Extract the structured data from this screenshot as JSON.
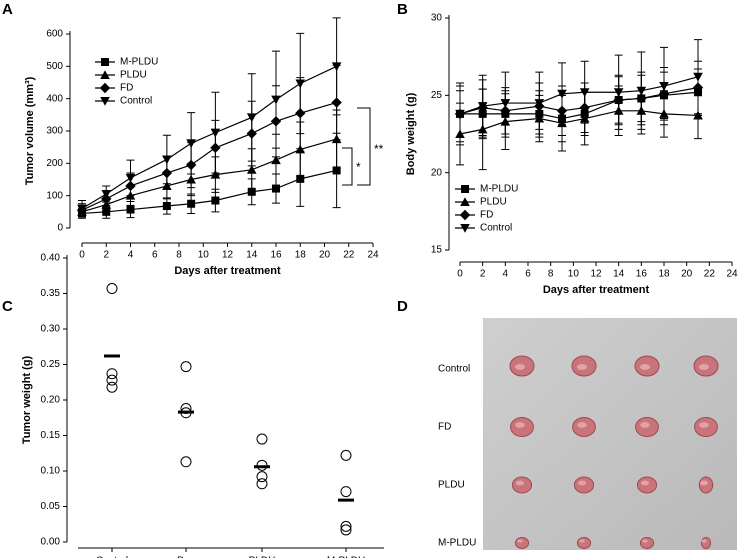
{
  "chart_data": [
    {
      "type": "line",
      "panel": "A",
      "x_label": "Days after treatment",
      "y_label": "Tumor volume (mm³)",
      "x": [
        0,
        2,
        4,
        7,
        9,
        11,
        14,
        16,
        18,
        21
      ],
      "xlim": [
        0,
        24
      ],
      "xticks": [
        0,
        2,
        4,
        6,
        8,
        10,
        12,
        14,
        16,
        18,
        20,
        22,
        24
      ],
      "ylim": [
        0,
        600
      ],
      "yticks": [
        0,
        100,
        200,
        300,
        400,
        500,
        600
      ],
      "series": [
        {
          "name": "M-PLDU",
          "color": "#000000",
          "marker": "square",
          "values": [
            45,
            50,
            57,
            68,
            75,
            85,
            112,
            122,
            152,
            178
          ],
          "errors": [
            15,
            20,
            25,
            25,
            30,
            35,
            40,
            45,
            85,
            115
          ]
        },
        {
          "name": "PLDU",
          "color": "#000000",
          "marker": "triangle",
          "values": [
            50,
            72,
            100,
            130,
            150,
            165,
            180,
            210,
            243,
            275
          ],
          "errors": [
            15,
            20,
            30,
            40,
            50,
            55,
            65,
            80,
            85,
            90
          ]
        },
        {
          "name": "FD",
          "color": "#000000",
          "marker": "diamond",
          "values": [
            55,
            90,
            130,
            170,
            195,
            248,
            292,
            330,
            355,
            388
          ],
          "errors": [
            20,
            25,
            40,
            50,
            70,
            85,
            100,
            110,
            110,
            115
          ]
        },
        {
          "name": "Control",
          "color": "#000000",
          "marker": "triangle-down",
          "values": [
            60,
            105,
            155,
            212,
            262,
            295,
            342,
            397,
            447,
            500
          ],
          "errors": [
            25,
            25,
            55,
            75,
            95,
            125,
            135,
            150,
            155,
            150
          ]
        }
      ],
      "annotations": [
        "**",
        "*"
      ]
    },
    {
      "type": "line",
      "panel": "B",
      "x_label": "Days after treatment",
      "y_label": "Body weight (g)",
      "x": [
        0,
        2,
        4,
        7,
        9,
        11,
        14,
        16,
        18,
        21
      ],
      "xlim": [
        0,
        24
      ],
      "xticks": [
        0,
        2,
        4,
        6,
        8,
        10,
        12,
        14,
        16,
        18,
        20,
        22,
        24
      ],
      "ylim": [
        15,
        30
      ],
      "yticks": [
        15,
        20,
        25,
        30
      ],
      "series": [
        {
          "name": "M-PLDU",
          "color": "#000000",
          "marker": "square",
          "values": [
            23.8,
            23.8,
            23.8,
            23.8,
            23.5,
            23.8,
            24.7,
            24.8,
            25.0,
            25.2
          ],
          "errors": [
            1.5,
            1.6,
            1.5,
            1.5,
            1.5,
            1.4,
            1.5,
            1.5,
            1.5,
            1.5
          ]
        },
        {
          "name": "PLDU",
          "color": "#000000",
          "marker": "triangle",
          "values": [
            22.5,
            22.8,
            23.3,
            23.5,
            23.2,
            23.5,
            24.0,
            24.0,
            23.8,
            23.7
          ],
          "errors": [
            2.0,
            2.6,
            1.8,
            1.5,
            1.8,
            1.7,
            1.6,
            1.5,
            1.5,
            1.5
          ]
        },
        {
          "name": "FD",
          "color": "#000000",
          "marker": "diamond",
          "values": [
            23.8,
            24.2,
            24.0,
            24.3,
            24.0,
            24.2,
            24.7,
            24.8,
            25.1,
            25.5
          ],
          "errors": [
            1.8,
            1.8,
            1.5,
            1.5,
            1.6,
            1.6,
            1.6,
            1.7,
            1.7,
            1.7
          ]
        },
        {
          "name": "Control",
          "color": "#000000",
          "marker": "triangle-down",
          "values": [
            23.8,
            24.3,
            24.5,
            24.5,
            25.1,
            25.2,
            25.2,
            25.3,
            25.6,
            26.2
          ],
          "errors": [
            2.0,
            2.0,
            2.0,
            2.0,
            2.0,
            2.0,
            2.4,
            2.5,
            2.5,
            2.4
          ]
        }
      ]
    },
    {
      "type": "dot",
      "panel": "C",
      "y_label": "Tumor weight (g)",
      "categories": [
        "Control",
        "Dox",
        "PLDU",
        "M-PLDU"
      ],
      "ylim": [
        0,
        0.4
      ],
      "yticks": [
        {
          "value": 0,
          "label": "0.00"
        },
        {
          "value": 0.05,
          "label": "0.05"
        },
        {
          "value": 0.1,
          "label": "0.10"
        },
        {
          "value": 0.15,
          "label": "0.15"
        },
        {
          "value": 0.2,
          "label": "0.20"
        },
        {
          "value": 0.25,
          "label": "0.25"
        },
        {
          "value": 0.3,
          "label": "0.30"
        },
        {
          "value": 0.35,
          "label": "0.35"
        },
        {
          "value": 0.4,
          "label": "0.40"
        }
      ],
      "points": [
        [
          0.357,
          0.237,
          0.228,
          0.218
        ],
        [
          0.247,
          0.188,
          0.182,
          0.113
        ],
        [
          0.145,
          0.108,
          0.092,
          0.082
        ],
        [
          0.122,
          0.071,
          0.022,
          0.017
        ]
      ],
      "means": [
        0.262,
        0.183,
        0.106,
        0.059
      ]
    }
  ],
  "photo_panel": {
    "panel": "D",
    "rows": [
      "Control",
      "FD",
      "PLDU",
      "M-PLDU"
    ]
  }
}
